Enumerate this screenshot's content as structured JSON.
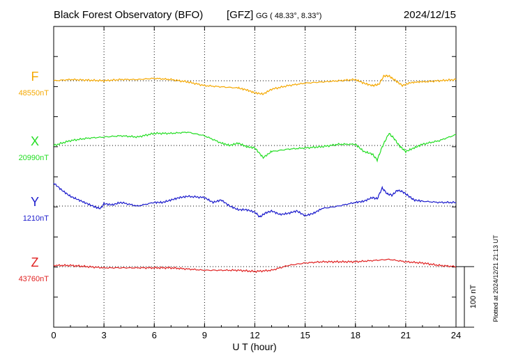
{
  "header": {
    "title": "Black Forest Observatory (BFO)",
    "agency": "[GFZ]",
    "coords": "GG ( 48.33°,   8.33°)",
    "date": "2024/12/15"
  },
  "footer": {
    "plotted": "Plotted at 2024/12/21 21:13 UT",
    "scale": "100 nT"
  },
  "chart_data": {
    "type": "line",
    "xlabel": "U T (hour)",
    "xlim": [
      0,
      24
    ],
    "xticks": [
      "0",
      "3",
      "6",
      "9",
      "12",
      "15",
      "18",
      "21",
      "24"
    ],
    "scale_nT": 100,
    "series": [
      {
        "name": "F",
        "baseline": "48550nT",
        "color": "#f5a800",
        "x": [
          0,
          1,
          2,
          3,
          4,
          5,
          6,
          7,
          8,
          9,
          10,
          11,
          11.5,
          12,
          12.5,
          13,
          14,
          15,
          16,
          17,
          18,
          18.5,
          19,
          19.4,
          19.7,
          20,
          20.4,
          20.8,
          21.2,
          22,
          23,
          24
        ],
        "y": [
          0,
          2,
          1,
          0,
          2,
          2,
          4,
          2,
          -2,
          -8,
          -10,
          -12,
          -15,
          -20,
          -22,
          -14,
          -8,
          -4,
          -2,
          0,
          2,
          -4,
          -8,
          -6,
          8,
          8,
          0,
          -8,
          -4,
          -2,
          0,
          2
        ]
      },
      {
        "name": "X",
        "baseline": "20990nT",
        "color": "#22dd22",
        "x": [
          0,
          1,
          2,
          3,
          4,
          5,
          6,
          7,
          8,
          9,
          10,
          10.5,
          11,
          11.5,
          12,
          12.5,
          13,
          14,
          15,
          16,
          17,
          18,
          18.5,
          19,
          19.3,
          19.6,
          20,
          20.3,
          20.6,
          21,
          21.5,
          22,
          23,
          24
        ],
        "y": [
          0,
          8,
          12,
          14,
          16,
          14,
          20,
          20,
          22,
          16,
          4,
          0,
          4,
          -2,
          -4,
          -20,
          -10,
          -6,
          -4,
          -2,
          2,
          2,
          -10,
          -14,
          -24,
          -2,
          20,
          12,
          0,
          -10,
          -4,
          2,
          8,
          18
        ]
      },
      {
        "name": "Y",
        "baseline": "1210nT",
        "color": "#1a1acc",
        "x": [
          0,
          0.5,
          1,
          1.5,
          2,
          2.5,
          2.8,
          3,
          3.5,
          4,
          5,
          6,
          6.5,
          7,
          7.5,
          8,
          9,
          9.5,
          10,
          10.5,
          11,
          11.5,
          12,
          12.3,
          12.6,
          13,
          13.5,
          14,
          14.5,
          15,
          15.5,
          16,
          17,
          18,
          18.5,
          19,
          19.3,
          19.6,
          19.9,
          20.2,
          20.5,
          20.8,
          21.2,
          21.5,
          22,
          23,
          24
        ],
        "y": [
          38,
          26,
          16,
          10,
          4,
          -2,
          -4,
          4,
          2,
          6,
          0,
          6,
          6,
          10,
          14,
          16,
          14,
          6,
          10,
          0,
          -6,
          -6,
          -10,
          -18,
          -12,
          -8,
          -14,
          -12,
          -8,
          -16,
          -12,
          -4,
          0,
          6,
          8,
          14,
          12,
          30,
          20,
          18,
          26,
          24,
          16,
          10,
          8,
          6,
          6
        ]
      },
      {
        "name": "Z",
        "baseline": "43760nT",
        "color": "#e02020",
        "x": [
          0,
          1,
          2,
          3,
          4,
          5,
          6,
          7,
          8,
          9,
          10,
          11,
          12,
          13,
          14,
          15,
          16,
          17,
          18,
          19,
          20,
          21,
          22,
          23,
          24
        ],
        "y": [
          2,
          2,
          0,
          -2,
          -2,
          -2,
          -2,
          -2,
          -4,
          -6,
          -6,
          -6,
          -8,
          -6,
          2,
          6,
          8,
          8,
          8,
          10,
          12,
          8,
          6,
          2,
          0
        ]
      }
    ]
  }
}
